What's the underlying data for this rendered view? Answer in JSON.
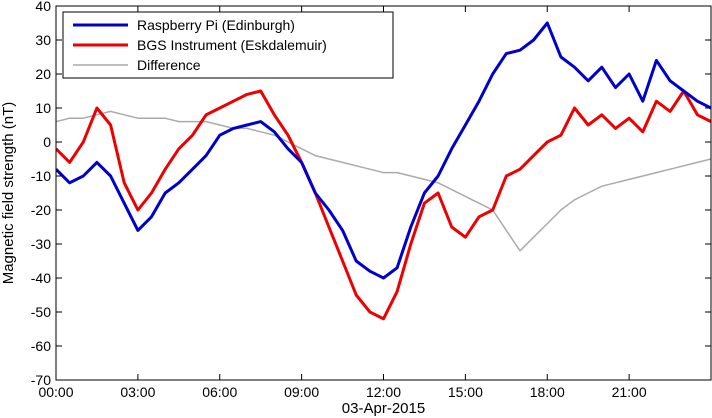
{
  "chart_data": {
    "type": "line",
    "xlabel": "03-Apr-2015",
    "ylabel": "Magnetic field strength (nT)",
    "xlim": [
      0,
      24
    ],
    "ylim": [
      -70,
      40
    ],
    "x_ticks": [
      0,
      3,
      6,
      9,
      12,
      15,
      18,
      21
    ],
    "x_tick_labels": [
      "00:00",
      "03:00",
      "06:00",
      "09:00",
      "12:00",
      "15:00",
      "18:00",
      "21:00"
    ],
    "y_ticks": [
      -70,
      -60,
      -50,
      -40,
      -30,
      -20,
      -10,
      0,
      10,
      20,
      30,
      40
    ],
    "y_tick_labels": [
      "-70",
      "-60",
      "-50",
      "-40",
      "-30",
      "-20",
      "-10",
      "0",
      "10",
      "20",
      "30",
      "40"
    ],
    "grid": false,
    "legend_position": "top-left",
    "series": [
      {
        "name": "Raspberry Pi (Edinburgh)",
        "color": "#0000cc",
        "x": [
          0,
          0.5,
          1,
          1.5,
          2,
          2.5,
          3,
          3.5,
          4,
          4.5,
          5,
          5.5,
          6,
          6.5,
          7,
          7.5,
          8,
          8.5,
          9,
          9.5,
          10,
          10.5,
          11,
          11.5,
          12,
          12.5,
          13,
          13.5,
          14,
          14.5,
          15,
          15.5,
          16,
          16.5,
          17,
          17.5,
          18,
          18.5,
          19,
          19.5,
          20,
          20.5,
          21,
          21.5,
          22,
          22.5,
          23,
          23.5,
          24
        ],
        "y": [
          -8,
          -12,
          -10,
          -6,
          -10,
          -18,
          -26,
          -22,
          -15,
          -12,
          -8,
          -4,
          2,
          4,
          5,
          6,
          3,
          -2,
          -6,
          -15,
          -20,
          -26,
          -35,
          -38,
          -40,
          -37,
          -25,
          -15,
          -10,
          -2,
          5,
          12,
          20,
          26,
          27,
          30,
          35,
          25,
          22,
          18,
          22,
          16,
          20,
          12,
          24,
          18,
          15,
          12,
          10
        ]
      },
      {
        "name": "BGS Instrument (Eskdalemuir)",
        "color": "#ee0000",
        "x": [
          0,
          0.5,
          1,
          1.5,
          2,
          2.5,
          3,
          3.5,
          4,
          4.5,
          5,
          5.5,
          6,
          6.5,
          7,
          7.5,
          8,
          8.5,
          9,
          9.5,
          10,
          10.5,
          11,
          11.5,
          12,
          12.5,
          13,
          13.5,
          14,
          14.5,
          15,
          15.5,
          16,
          16.5,
          17,
          17.5,
          18,
          18.5,
          19,
          19.5,
          20,
          20.5,
          21,
          21.5,
          22,
          22.5,
          23,
          23.5,
          24
        ],
        "y": [
          -2,
          -6,
          0,
          10,
          5,
          -12,
          -20,
          -15,
          -8,
          -2,
          2,
          8,
          10,
          12,
          14,
          15,
          8,
          2,
          -6,
          -15,
          -25,
          -35,
          -45,
          -50,
          -52,
          -44,
          -30,
          -18,
          -15,
          -25,
          -28,
          -22,
          -20,
          -10,
          -8,
          -4,
          0,
          2,
          10,
          5,
          8,
          4,
          7,
          3,
          12,
          9,
          15,
          8,
          6
        ]
      },
      {
        "name": "Difference",
        "color": "#aaaaaa",
        "x": [
          0,
          0.5,
          1,
          1.5,
          2,
          2.5,
          3,
          3.5,
          4,
          4.5,
          5,
          5.5,
          6,
          6.5,
          7,
          7.5,
          8,
          8.5,
          9,
          9.5,
          10,
          10.5,
          11,
          11.5,
          12,
          12.5,
          13,
          13.5,
          14,
          14.5,
          15,
          15.5,
          16,
          16.5,
          17,
          17.5,
          18,
          18.5,
          19,
          19.5,
          20,
          20.5,
          21,
          21.5,
          22,
          22.5,
          23,
          23.5,
          24
        ],
        "y": [
          6,
          7,
          7,
          8,
          9,
          8,
          7,
          7,
          7,
          6,
          6,
          6,
          5,
          4,
          4,
          3,
          2,
          0,
          -2,
          -4,
          -5,
          -6,
          -7,
          -8,
          -9,
          -9,
          -10,
          -11,
          -12,
          -14,
          -16,
          -18,
          -20,
          -26,
          -32,
          -28,
          -24,
          -20,
          -17,
          -15,
          -13,
          -12,
          -11,
          -10,
          -9,
          -8,
          -7,
          -6,
          -5
        ]
      }
    ]
  }
}
